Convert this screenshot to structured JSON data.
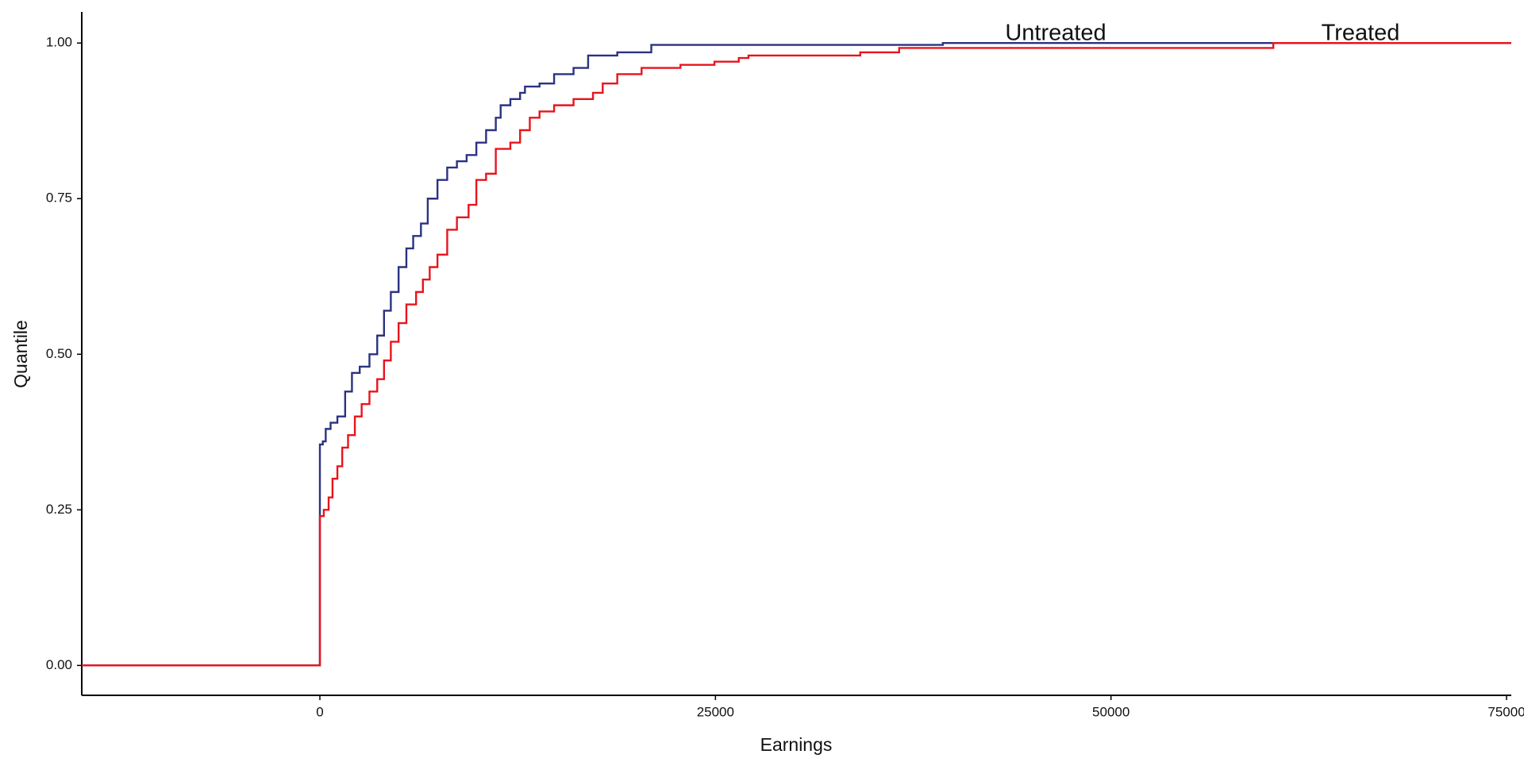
{
  "chart_data": {
    "type": "line",
    "step": "post",
    "x_label": "Earnings",
    "y_label": "Quantile",
    "xlim": [
      -15050,
      75300
    ],
    "xticks": [
      0,
      25000,
      50000,
      75000
    ],
    "ylim": [
      -0.048,
      1.05
    ],
    "yticks": [
      {
        "value": 0,
        "label": "0.00"
      },
      {
        "value": 0.25,
        "label": "0.25"
      },
      {
        "value": 0.5,
        "label": "0.50"
      },
      {
        "value": 0.75,
        "label": "0.75"
      },
      {
        "value": 1,
        "label": "1.00"
      }
    ],
    "grid": false,
    "series": [
      {
        "name": "Untreated",
        "color": "#2b3281",
        "x": [
          -15050,
          0,
          0,
          184,
          369,
          676,
          1106,
          1597,
          2027,
          2518,
          3133,
          3624,
          4054,
          4484,
          4975,
          5467,
          5897,
          6388,
          6818,
          7432,
          8047,
          8661,
          9275,
          9889,
          10504,
          11118,
          11425,
          12039,
          12654,
          12961,
          13882,
          14803,
          16032,
          16953,
          18796,
          20946,
          39373,
          75300
        ],
        "values": [
          0,
          0,
          0.355,
          0.36,
          0.38,
          0.39,
          0.4,
          0.44,
          0.47,
          0.48,
          0.5,
          0.53,
          0.57,
          0.6,
          0.64,
          0.67,
          0.69,
          0.71,
          0.75,
          0.78,
          0.8,
          0.81,
          0.82,
          0.84,
          0.86,
          0.88,
          0.9,
          0.91,
          0.92,
          0.93,
          0.935,
          0.95,
          0.96,
          0.98,
          0.985,
          0.997,
          1.0,
          1.0
        ]
      },
      {
        "name": "Treated",
        "color": "#e8141c",
        "x": [
          -15050,
          0,
          0,
          246,
          553,
          799,
          1106,
          1413,
          1781,
          2211,
          2641,
          3133,
          3624,
          4054,
          4484,
          4975,
          5467,
          6081,
          6511,
          6941,
          7432,
          8047,
          8661,
          9398,
          9889,
          10504,
          11118,
          12039,
          12654,
          13268,
          13882,
          14803,
          16032,
          17260,
          17875,
          18796,
          20332,
          22789,
          24939,
          26474,
          27088,
          34152,
          36609,
          60258,
          75300
        ],
        "values": [
          0,
          0,
          0.24,
          0.25,
          0.27,
          0.3,
          0.32,
          0.35,
          0.37,
          0.4,
          0.42,
          0.44,
          0.46,
          0.49,
          0.52,
          0.55,
          0.58,
          0.6,
          0.62,
          0.64,
          0.66,
          0.7,
          0.72,
          0.74,
          0.78,
          0.79,
          0.83,
          0.84,
          0.86,
          0.88,
          0.89,
          0.9,
          0.91,
          0.92,
          0.935,
          0.95,
          0.96,
          0.965,
          0.97,
          0.976,
          0.98,
          0.985,
          0.992,
          1.0,
          1.0
        ]
      }
    ]
  }
}
